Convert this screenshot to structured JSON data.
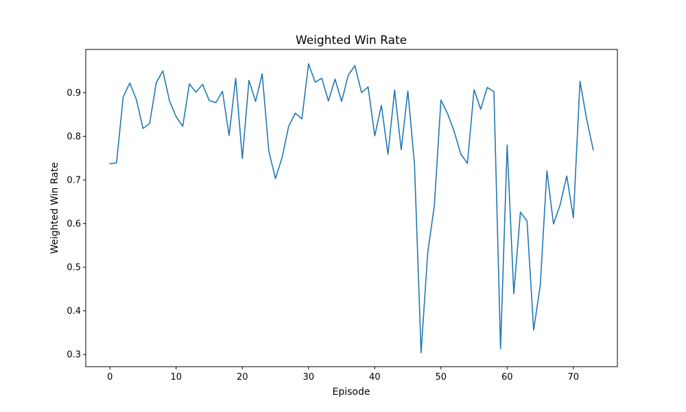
{
  "chart_data": {
    "type": "line",
    "title": "Weighted Win Rate",
    "xlabel": "Episode",
    "ylabel": "Weighted Win Rate",
    "xlim": [
      -3.65,
      76.65
    ],
    "ylim": [
      0.272,
      0.999
    ],
    "xticks": [
      0,
      10,
      20,
      30,
      40,
      50,
      60,
      70
    ],
    "yticks": [
      0.3,
      0.4,
      0.5,
      0.6,
      0.7,
      0.8,
      0.9
    ],
    "xtick_labels": [
      "0",
      "10",
      "20",
      "30",
      "40",
      "50",
      "60",
      "70"
    ],
    "ytick_labels": [
      "0.3",
      "0.4",
      "0.5",
      "0.6",
      "0.7",
      "0.8",
      "0.9"
    ],
    "grid": false,
    "legend": "none",
    "series": [
      {
        "color": "#1f77b4",
        "x": [
          0,
          1,
          2,
          3,
          4,
          5,
          6,
          7,
          8,
          9,
          10,
          11,
          12,
          13,
          14,
          15,
          16,
          17,
          18,
          19,
          20,
          21,
          22,
          23,
          24,
          25,
          26,
          27,
          28,
          29,
          30,
          31,
          32,
          33,
          34,
          35,
          36,
          37,
          38,
          39,
          40,
          41,
          42,
          43,
          44,
          45,
          46,
          47,
          48,
          49,
          50,
          51,
          52,
          53,
          54,
          55,
          56,
          57,
          58,
          59,
          60,
          61,
          62,
          63,
          64,
          65,
          66,
          67,
          68,
          69,
          70,
          71,
          72,
          73
        ],
        "y": [
          0.737,
          0.739,
          0.89,
          0.922,
          0.884,
          0.818,
          0.829,
          0.923,
          0.95,
          0.881,
          0.845,
          0.823,
          0.92,
          0.901,
          0.919,
          0.882,
          0.877,
          0.903,
          0.802,
          0.933,
          0.749,
          0.928,
          0.88,
          0.943,
          0.766,
          0.703,
          0.751,
          0.823,
          0.853,
          0.84,
          0.966,
          0.924,
          0.933,
          0.881,
          0.931,
          0.88,
          0.94,
          0.962,
          0.9,
          0.913,
          0.801,
          0.871,
          0.759,
          0.906,
          0.769,
          0.904,
          0.737,
          0.304,
          0.533,
          0.641,
          0.883,
          0.852,
          0.811,
          0.759,
          0.738,
          0.907,
          0.862,
          0.912,
          0.902,
          0.313,
          0.78,
          0.439,
          0.626,
          0.606,
          0.356,
          0.458,
          0.721,
          0.599,
          0.643,
          0.709,
          0.613,
          0.926,
          0.84,
          0.769
        ]
      }
    ]
  }
}
